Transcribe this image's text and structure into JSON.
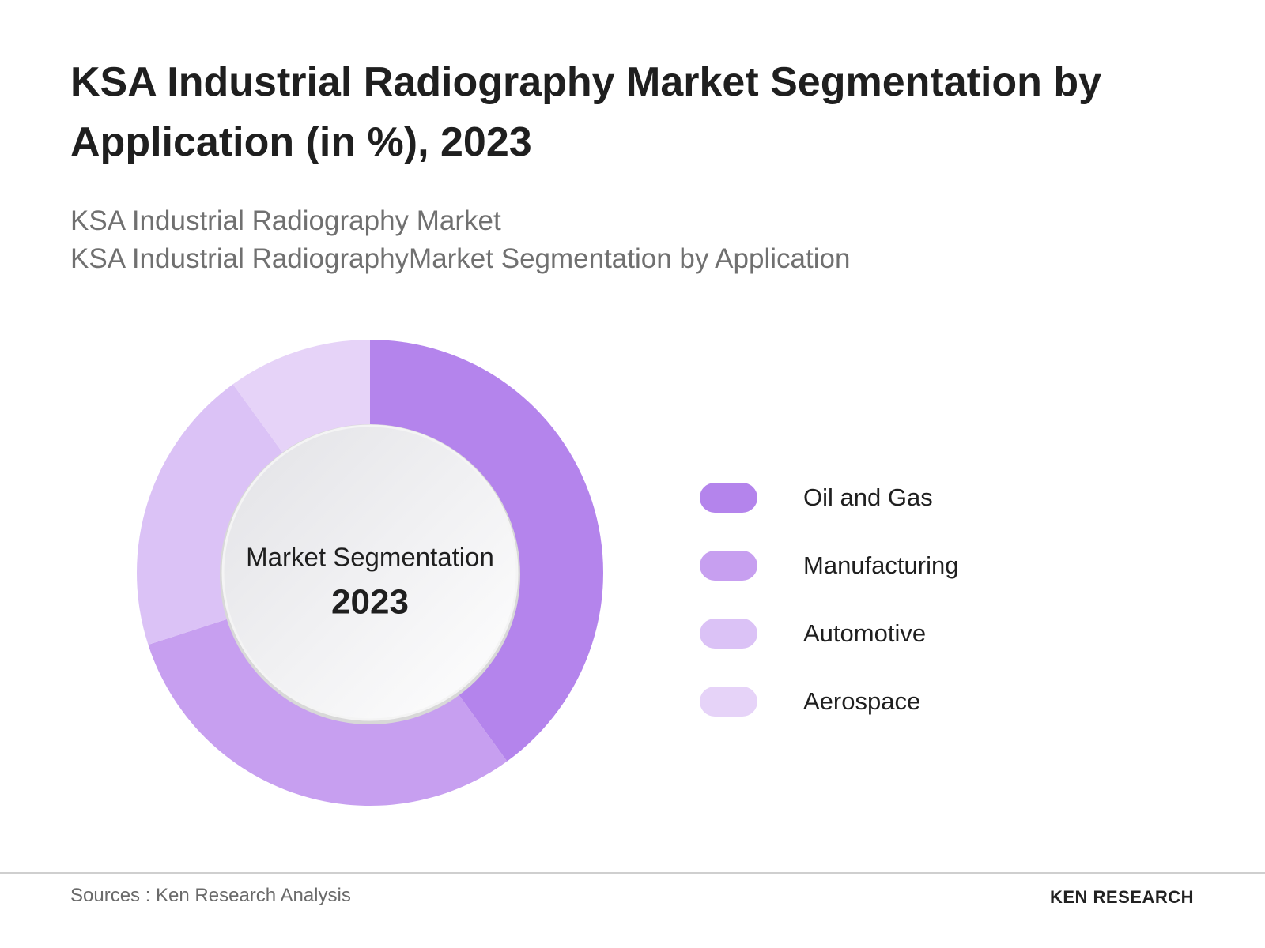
{
  "chart_data": {
    "type": "donut",
    "title": "KSA Industrial Radiography Market Segmentation by Application (in %), 2023",
    "subtitles": [
      "KSA Industrial Radiography Market",
      "KSA Industrial RadiographyMarket Segmentation by Application"
    ],
    "categories": [
      "Oil and Gas",
      "Manufacturing",
      "Automotive",
      "Aerospace"
    ],
    "values": [
      40,
      30,
      20,
      10
    ],
    "colors": [
      "#b484ec",
      "#c79ff0",
      "#dbc2f6",
      "#e6d3f8"
    ],
    "center_text": [
      "Market Segmentation",
      "2023"
    ],
    "source": "Sources : Ken Research Analysis",
    "brand": "KEN RESEARCH"
  }
}
